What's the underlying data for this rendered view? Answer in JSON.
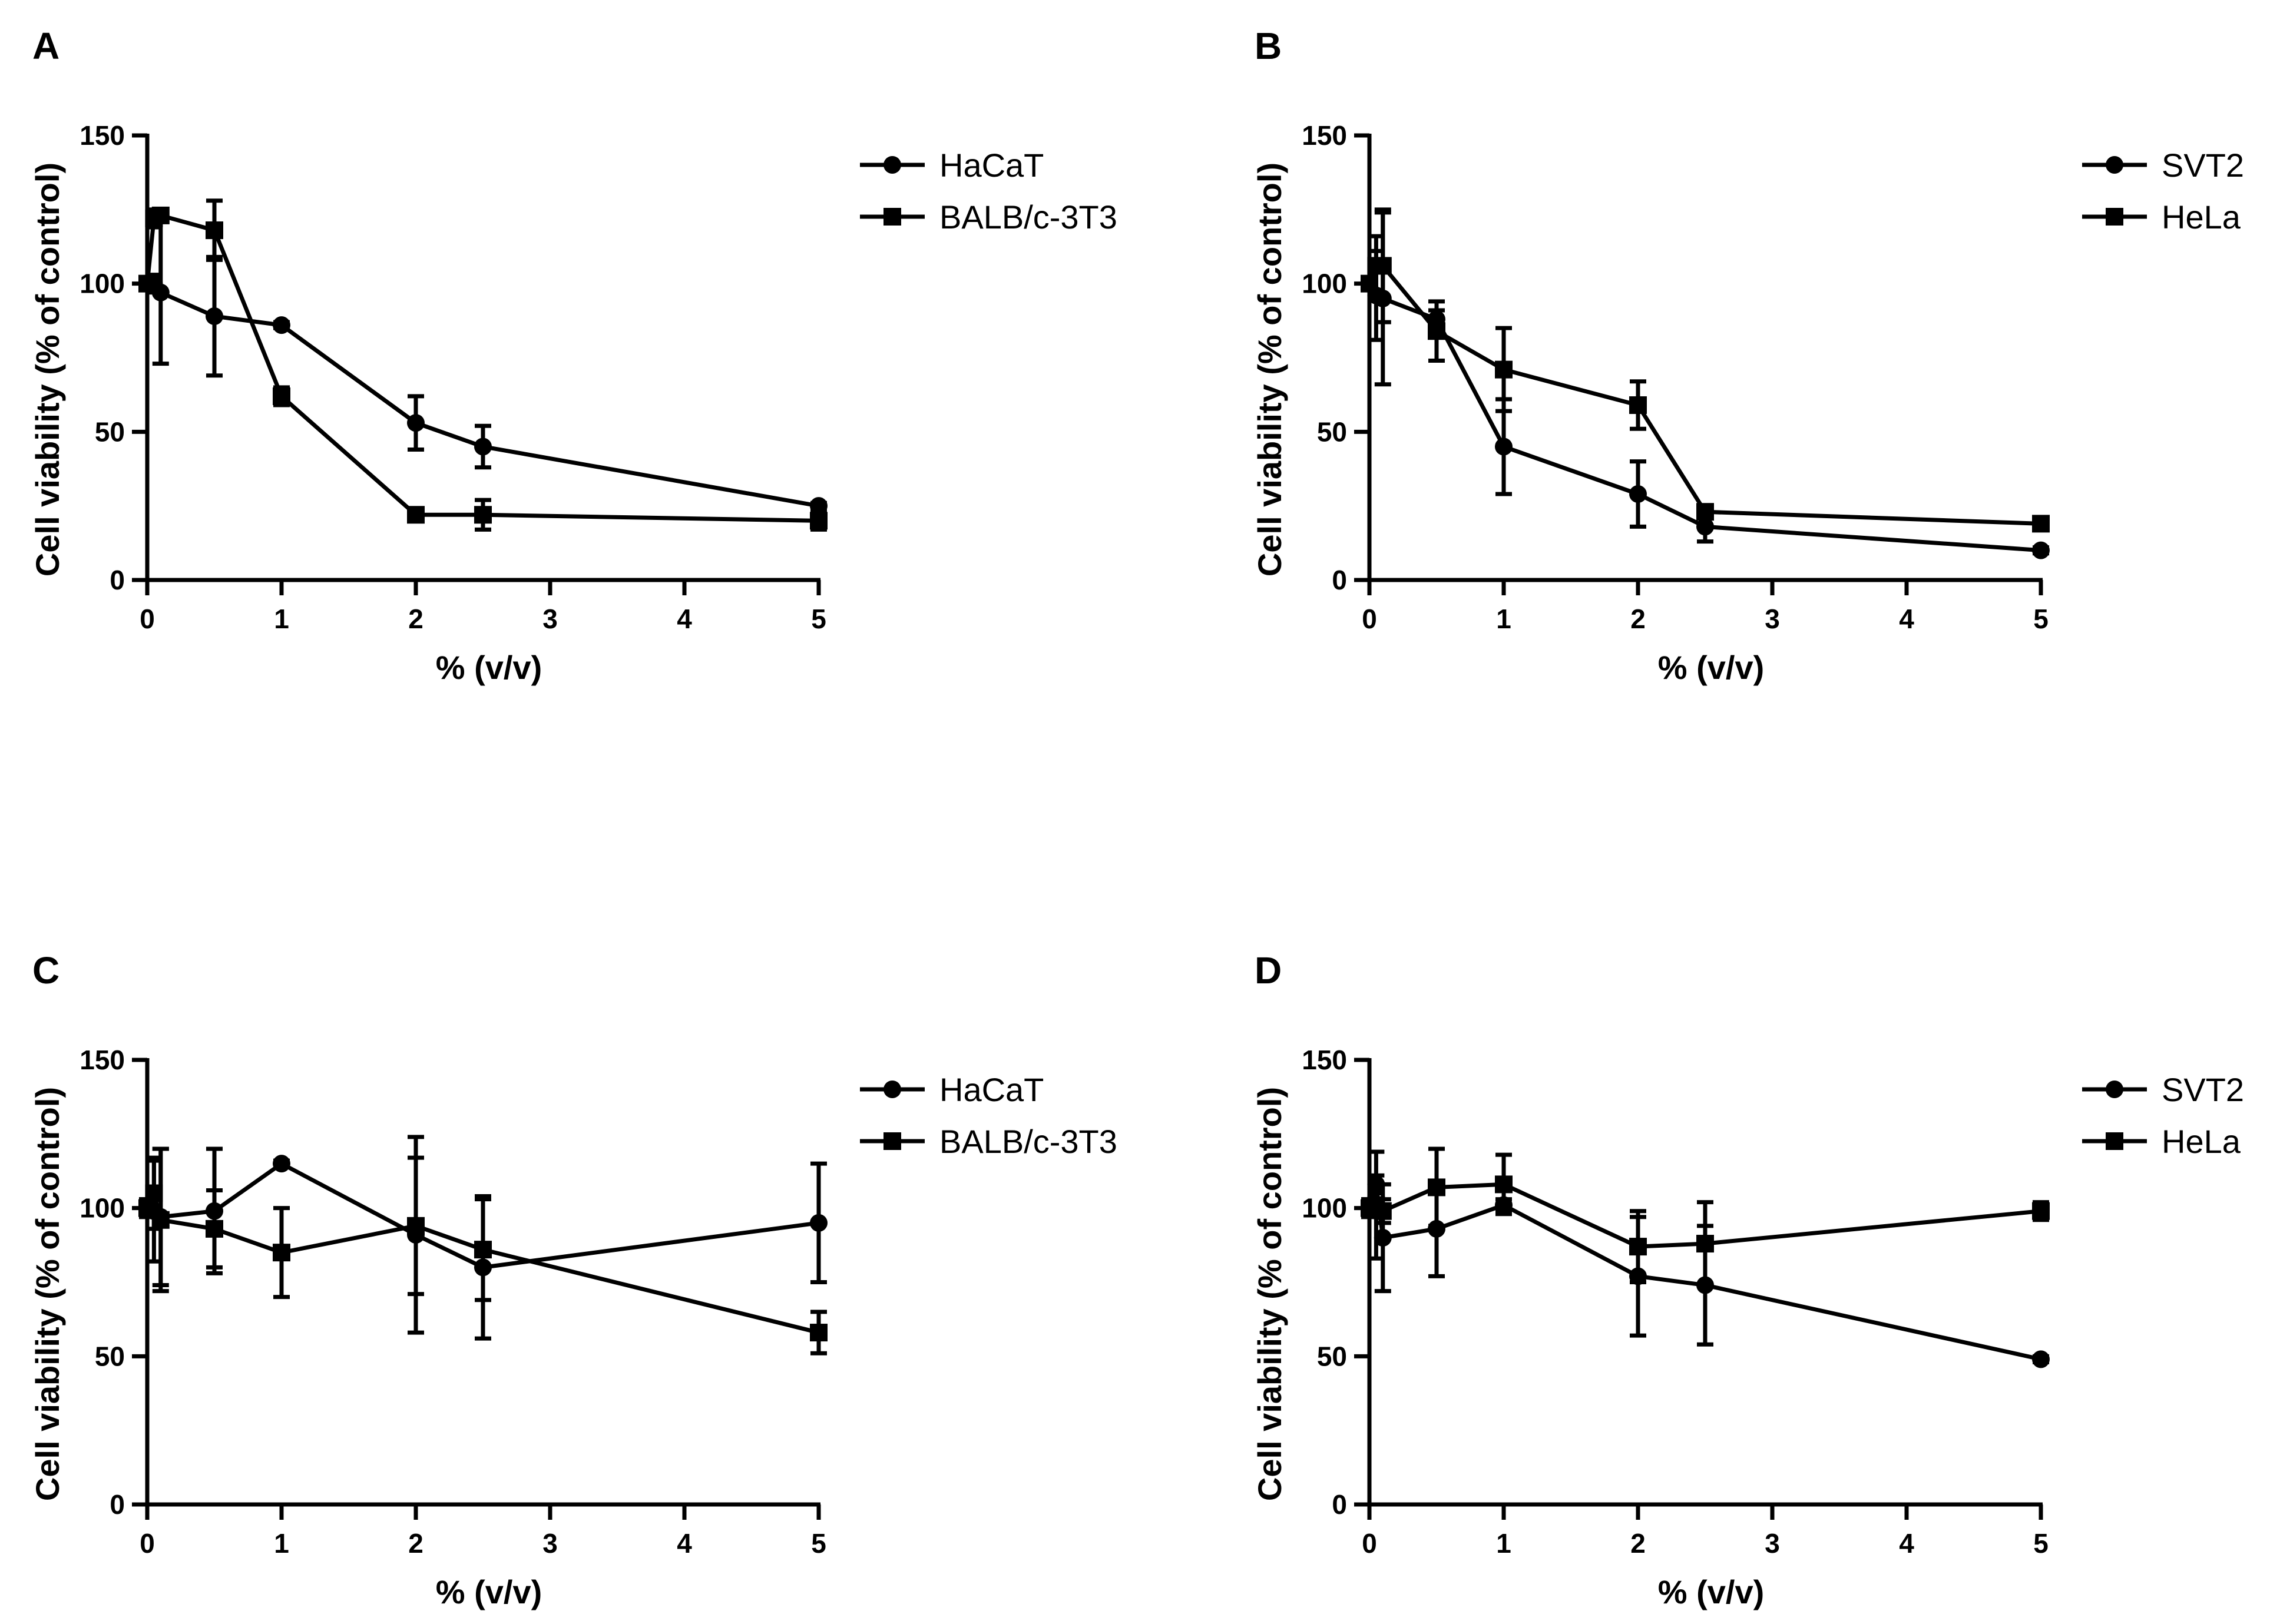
{
  "chart_data": [
    {
      "panel": "A",
      "type": "line",
      "xlabel": "% (v/v)",
      "ylabel": "Cell viability (% of control)",
      "xlim": [
        0,
        5
      ],
      "ylim": [
        0,
        150
      ],
      "xticks": [
        "0",
        "1",
        "2",
        "3",
        "4",
        "5"
      ],
      "yticks": [
        "0",
        "50",
        "100",
        "150"
      ],
      "grid": false,
      "legend_position": "top-right",
      "series": [
        {
          "name": "HaCaT",
          "marker": "circle",
          "x": [
            0,
            0.05,
            0.1,
            0.5,
            1,
            2,
            2.5,
            5
          ],
          "values": [
            100,
            100,
            97,
            89,
            86,
            53,
            45,
            25
          ],
          "errors": [
            2,
            3,
            24,
            20,
            1,
            9,
            7,
            1
          ]
        },
        {
          "name": "BALB/c-3T3",
          "marker": "square",
          "x": [
            0,
            0.05,
            0.1,
            0.5,
            1,
            2,
            2.5,
            5
          ],
          "values": [
            100,
            122,
            123,
            118,
            62,
            22,
            22,
            20
          ],
          "errors": [
            2,
            3,
            2,
            10,
            3,
            1,
            5,
            3
          ]
        }
      ]
    },
    {
      "panel": "B",
      "type": "line",
      "xlabel": "% (v/v)",
      "ylabel": "Cell viability (% of control)",
      "xlim": [
        0,
        5
      ],
      "ylim": [
        0,
        150
      ],
      "xticks": [
        "0",
        "1",
        "2",
        "3",
        "4",
        "5"
      ],
      "yticks": [
        "0",
        "50",
        "100",
        "150"
      ],
      "grid": false,
      "legend_position": "top-right",
      "series": [
        {
          "name": "SVT2",
          "marker": "circle",
          "x": [
            0,
            0.05,
            0.1,
            0.5,
            1,
            2,
            2.5,
            5
          ],
          "values": [
            100,
            96,
            95,
            88,
            45,
            29,
            18,
            10
          ],
          "errors": [
            2,
            15,
            29,
            3,
            16,
            11,
            5,
            1
          ]
        },
        {
          "name": "HeLa",
          "marker": "square",
          "x": [
            0,
            0.05,
            0.1,
            0.5,
            1,
            2,
            2.5,
            5
          ],
          "values": [
            100,
            106,
            106,
            84,
            71,
            59,
            23,
            19
          ],
          "errors": [
            2,
            10,
            19,
            10,
            14,
            8,
            2,
            1
          ]
        }
      ]
    },
    {
      "panel": "C",
      "type": "line",
      "xlabel": "% (v/v)",
      "ylabel": "Cell viability (% of control)",
      "xlim": [
        0,
        5
      ],
      "ylim": [
        0,
        150
      ],
      "xticks": [
        "0",
        "1",
        "2",
        "3",
        "4",
        "5"
      ],
      "yticks": [
        "0",
        "50",
        "100",
        "150"
      ],
      "grid": false,
      "legend_position": "top-right",
      "series": [
        {
          "name": "HaCaT",
          "marker": "circle",
          "x": [
            0,
            0.05,
            0.1,
            0.5,
            1,
            2,
            2.5,
            5
          ],
          "values": [
            100,
            99,
            97,
            99,
            115,
            91,
            80,
            95
          ],
          "errors": [
            3,
            17,
            23,
            21,
            1,
            33,
            24,
            20
          ]
        },
        {
          "name": "BALB/c-3T3",
          "marker": "square",
          "x": [
            0,
            0.05,
            0.1,
            0.5,
            1,
            2,
            2.5,
            5
          ],
          "values": [
            100,
            105,
            96,
            93,
            85,
            94,
            86,
            58
          ],
          "errors": [
            3,
            12,
            24,
            13,
            15,
            23,
            17,
            7
          ]
        }
      ]
    },
    {
      "panel": "D",
      "type": "line",
      "xlabel": "% (v/v)",
      "ylabel": "Cell viability (% of control)",
      "xlim": [
        0,
        5
      ],
      "ylim": [
        0,
        150
      ],
      "xticks": [
        "0",
        "1",
        "2",
        "3",
        "4",
        "5"
      ],
      "yticks": [
        "0",
        "50",
        "100",
        "150"
      ],
      "grid": false,
      "legend_position": "top-right",
      "series": [
        {
          "name": "SVT2",
          "marker": "circle",
          "x": [
            0,
            0.05,
            0.1,
            0.5,
            1,
            2,
            2.5,
            5
          ],
          "values": [
            100,
            108,
            90,
            93,
            101,
            77,
            74,
            49
          ],
          "errors": [
            3,
            3,
            18,
            16,
            2,
            20,
            20,
            1
          ]
        },
        {
          "name": "HeLa",
          "marker": "square",
          "x": [
            0,
            0.05,
            0.1,
            0.5,
            1,
            2,
            2.5,
            5
          ],
          "values": [
            100,
            101,
            99,
            107,
            108,
            87,
            88,
            99
          ],
          "errors": [
            3,
            18,
            4,
            13,
            10,
            12,
            14,
            3
          ]
        }
      ]
    }
  ]
}
